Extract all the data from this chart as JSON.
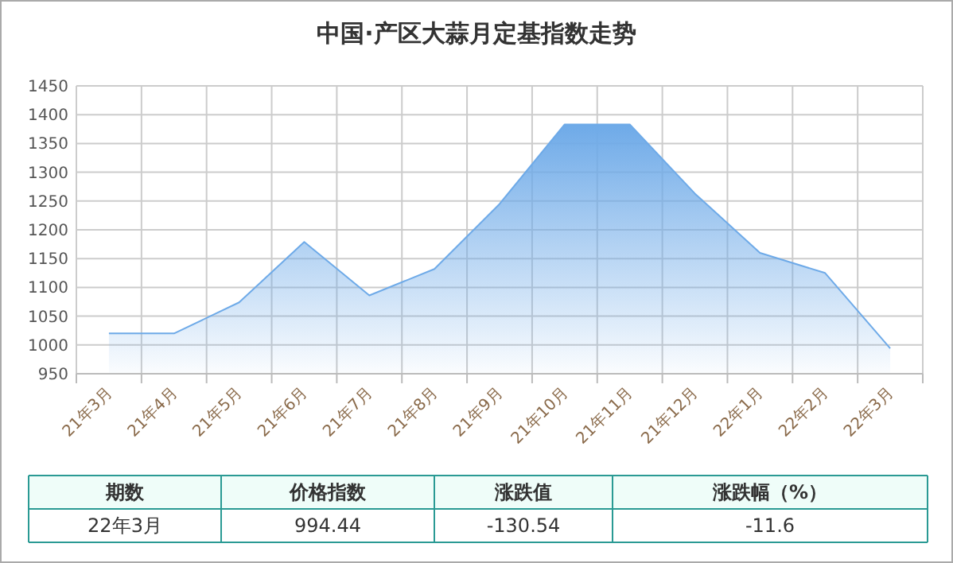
{
  "chart_data": [
    {
      "type": "area",
      "title": "中国·产区大蒜月定基指数走势",
      "categories": [
        "21年3月",
        "21年4月",
        "21年5月",
        "21年6月",
        "21年7月",
        "21年8月",
        "21年9月",
        "21年10月",
        "21年11月",
        "21年12月",
        "22年1月",
        "22年2月",
        "22年3月"
      ],
      "series": [
        {
          "color": "#6eaae8",
          "values": [
            1020,
            1020,
            1074,
            1179,
            1086,
            1132,
            1245,
            1383,
            1383,
            1263,
            1160,
            1125,
            994
          ]
        }
      ],
      "ylim": [
        950,
        1450
      ],
      "yticks": [
        950,
        1000,
        1050,
        1100,
        1150,
        1200,
        1250,
        1300,
        1350,
        1400,
        1450
      ],
      "grid": true
    },
    {
      "type": "other",
      "annotations": [
        "期数",
        "价格指数",
        "涨跌值",
        "涨跌幅（%）",
        "22年3月",
        "994.44",
        "-130.54",
        "-11.6"
      ]
    }
  ]
}
